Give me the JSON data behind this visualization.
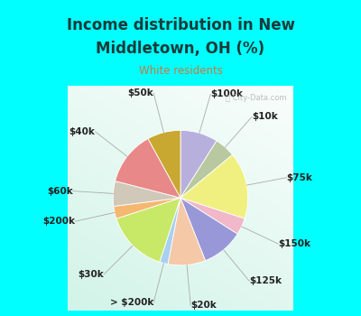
{
  "title_line1": "Income distribution in New",
  "title_line2": "Middletown, OH (%)",
  "subtitle": "White residents",
  "title_color": "#1a3a3a",
  "subtitle_color": "#c87941",
  "bg_cyan": "#00ffff",
  "watermark": "ⓘ City-Data.com",
  "slices": [
    {
      "label": "$100k",
      "value": 9,
      "color": "#b8b0dc"
    },
    {
      "label": "$10k",
      "value": 5,
      "color": "#b8c8a0"
    },
    {
      "label": "$75k",
      "value": 16,
      "color": "#f0f080"
    },
    {
      "label": "$150k",
      "value": 4,
      "color": "#f0b8c8"
    },
    {
      "label": "$125k",
      "value": 10,
      "color": "#9898d8"
    },
    {
      "label": "$20k",
      "value": 9,
      "color": "#f5c8a8"
    },
    {
      "label": "> $200k",
      "value": 2,
      "color": "#a8d0f0"
    },
    {
      "label": "$30k",
      "value": 15,
      "color": "#c8e868"
    },
    {
      "label": "$200k",
      "value": 3,
      "color": "#f5b870"
    },
    {
      "label": "$60k",
      "value": 6,
      "color": "#d0c8b8"
    },
    {
      "label": "$40k",
      "value": 13,
      "color": "#e88888"
    },
    {
      "label": "$50k",
      "value": 8,
      "color": "#c8a830"
    }
  ],
  "label_fontsize": 7.5,
  "label_color": "#222222",
  "start_angle": 90
}
